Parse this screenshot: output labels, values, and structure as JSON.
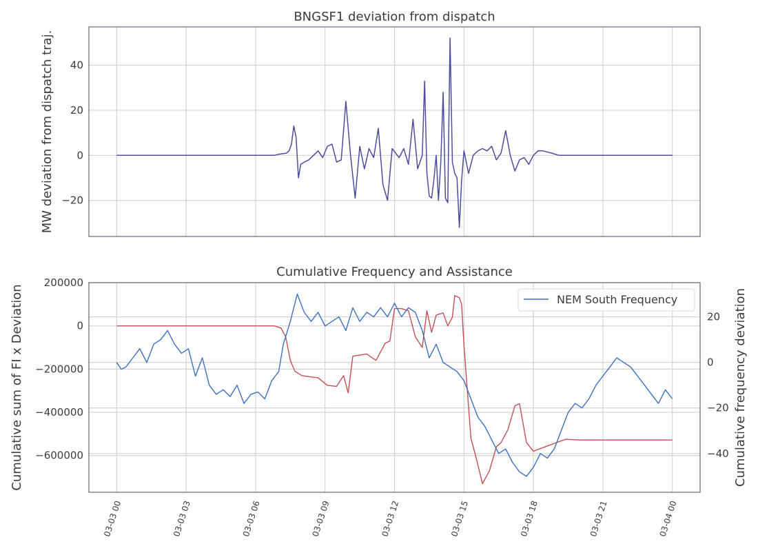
{
  "chart_data": [
    {
      "type": "line",
      "title": "BNGSF1 deviation from dispatch",
      "xlabel": "",
      "ylabel": "MW deviation from dispatch traj.",
      "xlim": [
        "2024-03-02T22:48",
        "2024-03-04T01:12"
      ],
      "ylim": [
        -36,
        57
      ],
      "yticks": [
        -20,
        0,
        20,
        40
      ],
      "grid": true,
      "series": [
        {
          "color": "#4c4c9c",
          "x": [
            "2024-03-03T00:00",
            "2024-03-03T06:48",
            "2024-03-03T07:00",
            "2024-03-03T07:20",
            "2024-03-03T07:27",
            "2024-03-03T07:33",
            "2024-03-03T07:39",
            "2024-03-03T07:45",
            "2024-03-03T07:51",
            "2024-03-03T07:57",
            "2024-03-03T08:06",
            "2024-03-03T08:18",
            "2024-03-03T08:30",
            "2024-03-03T08:42",
            "2024-03-03T08:54",
            "2024-03-03T09:06",
            "2024-03-03T09:18",
            "2024-03-03T09:30",
            "2024-03-03T09:42",
            "2024-03-03T09:54",
            "2024-03-03T10:06",
            "2024-03-03T10:18",
            "2024-03-03T10:30",
            "2024-03-03T10:42",
            "2024-03-03T10:54",
            "2024-03-03T11:06",
            "2024-03-03T11:18",
            "2024-03-03T11:30",
            "2024-03-03T11:42",
            "2024-03-03T11:54",
            "2024-03-03T12:12",
            "2024-03-03T12:24",
            "2024-03-03T12:36",
            "2024-03-03T12:48",
            "2024-03-03T13:00",
            "2024-03-03T13:12",
            "2024-03-03T13:18",
            "2024-03-03T13:24",
            "2024-03-03T13:30",
            "2024-03-03T13:36",
            "2024-03-03T13:42",
            "2024-03-03T13:48",
            "2024-03-03T13:54",
            "2024-03-03T14:00",
            "2024-03-03T14:06",
            "2024-03-03T14:12",
            "2024-03-03T14:18",
            "2024-03-03T14:24",
            "2024-03-03T14:30",
            "2024-03-03T14:36",
            "2024-03-03T14:42",
            "2024-03-03T14:48",
            "2024-03-03T14:54",
            "2024-03-03T15:00",
            "2024-03-03T15:12",
            "2024-03-03T15:24",
            "2024-03-03T15:36",
            "2024-03-03T15:48",
            "2024-03-03T16:00",
            "2024-03-03T16:12",
            "2024-03-03T16:24",
            "2024-03-03T16:36",
            "2024-03-03T16:48",
            "2024-03-03T17:00",
            "2024-03-03T17:12",
            "2024-03-03T17:24",
            "2024-03-03T17:36",
            "2024-03-03T17:48",
            "2024-03-03T18:00",
            "2024-03-03T18:12",
            "2024-03-03T18:24",
            "2024-03-03T18:48",
            "2024-03-03T19:06",
            "2024-03-03T19:24",
            "2024-03-03T20:00",
            "2024-03-04T00:00"
          ],
          "y": [
            0,
            0,
            0.5,
            1,
            2,
            5,
            13,
            8,
            -10,
            -4,
            -3,
            -2,
            0,
            2,
            -1,
            4,
            5,
            -3,
            -2,
            24,
            0,
            -19,
            4,
            -6,
            3,
            -1,
            12,
            -13,
            -20,
            3,
            -1,
            3,
            -4,
            16,
            -6,
            0,
            33,
            -8,
            -18,
            -19,
            -11,
            0,
            -20,
            -3,
            28,
            -19,
            -21,
            52,
            -3,
            -8,
            -10,
            -32,
            -11,
            2,
            -8,
            0,
            2,
            3,
            2,
            4,
            -2,
            1,
            11,
            0,
            -7,
            -2,
            -1,
            -4,
            0,
            2,
            2,
            1,
            0,
            0,
            0,
            0
          ]
        }
      ]
    },
    {
      "type": "line",
      "title": "Cumulative Frequency and Assistance",
      "xlabel": "",
      "ylabel": "Cumulative sum of FI x Deviation",
      "y2label": "Cumulative frequency deviation",
      "xlim": [
        "2024-03-02T22:48",
        "2024-03-04T01:12"
      ],
      "ylim": [
        -770000,
        200000
      ],
      "yticks": [
        -600000,
        -400000,
        -200000,
        0,
        200000
      ],
      "y2lim": [
        -57,
        35
      ],
      "y2ticks": [
        -40,
        -20,
        0,
        20
      ],
      "xticks": [
        "03-03 00",
        "03-03 03",
        "03-03 06",
        "03-03 09",
        "03-03 12",
        "03-03 15",
        "03-03 18",
        "03-03 21",
        "03-04 00"
      ],
      "legend": {
        "position": "top-right",
        "entries": [
          "NEM South Frequency"
        ]
      },
      "grid": true,
      "series": [
        {
          "axis": "left",
          "color": "#c44e52",
          "x": [
            "2024-03-03T00:00",
            "2024-03-03T06:48",
            "2024-03-03T07:06",
            "2024-03-03T07:18",
            "2024-03-03T07:30",
            "2024-03-03T07:42",
            "2024-03-03T08:00",
            "2024-03-03T08:18",
            "2024-03-03T08:42",
            "2024-03-03T09:06",
            "2024-03-03T09:30",
            "2024-03-03T09:48",
            "2024-03-03T10:00",
            "2024-03-03T10:12",
            "2024-03-03T10:48",
            "2024-03-03T11:12",
            "2024-03-03T11:36",
            "2024-03-03T11:48",
            "2024-03-03T12:00",
            "2024-03-03T12:18",
            "2024-03-03T12:36",
            "2024-03-03T12:54",
            "2024-03-03T13:12",
            "2024-03-03T13:24",
            "2024-03-03T13:36",
            "2024-03-03T13:48",
            "2024-03-03T14:06",
            "2024-03-03T14:18",
            "2024-03-03T14:30",
            "2024-03-03T14:36",
            "2024-03-03T14:48",
            "2024-03-03T14:54",
            "2024-03-03T15:00",
            "2024-03-03T15:18",
            "2024-03-03T15:30",
            "2024-03-03T15:48",
            "2024-03-03T16:06",
            "2024-03-03T16:24",
            "2024-03-03T16:36",
            "2024-03-03T16:54",
            "2024-03-03T17:12",
            "2024-03-03T17:24",
            "2024-03-03T17:42",
            "2024-03-03T18:00",
            "2024-03-03T18:30",
            "2024-03-03T19:00",
            "2024-03-03T19:24",
            "2024-03-03T20:00",
            "2024-03-04T00:00"
          ],
          "y": [
            0,
            0,
            -10000,
            -50000,
            -160000,
            -210000,
            -230000,
            -235000,
            -240000,
            -275000,
            -280000,
            -230000,
            -310000,
            -140000,
            -130000,
            -160000,
            -80000,
            -70000,
            80000,
            80000,
            70000,
            -50000,
            -100000,
            70000,
            -30000,
            50000,
            60000,
            0,
            40000,
            140000,
            130000,
            100000,
            -90000,
            -520000,
            -600000,
            -730000,
            -670000,
            -560000,
            -540000,
            -480000,
            -370000,
            -360000,
            -540000,
            -580000,
            -560000,
            -540000,
            -525000,
            -528000,
            -528000
          ]
        },
        {
          "axis": "right",
          "color": "#3b6fc2",
          "name": "NEM South Frequency",
          "x": [
            "2024-03-03T00:00",
            "2024-03-03T00:12",
            "2024-03-03T00:24",
            "2024-03-03T00:42",
            "2024-03-03T01:00",
            "2024-03-03T01:18",
            "2024-03-03T01:36",
            "2024-03-03T01:54",
            "2024-03-03T02:12",
            "2024-03-03T02:30",
            "2024-03-03T02:48",
            "2024-03-03T03:06",
            "2024-03-03T03:24",
            "2024-03-03T03:42",
            "2024-03-03T04:00",
            "2024-03-03T04:18",
            "2024-03-03T04:36",
            "2024-03-03T04:54",
            "2024-03-03T05:12",
            "2024-03-03T05:30",
            "2024-03-03T05:48",
            "2024-03-03T06:06",
            "2024-03-03T06:24",
            "2024-03-03T06:42",
            "2024-03-03T07:00",
            "2024-03-03T07:12",
            "2024-03-03T07:30",
            "2024-03-03T07:48",
            "2024-03-03T08:06",
            "2024-03-03T08:24",
            "2024-03-03T08:42",
            "2024-03-03T09:00",
            "2024-03-03T09:18",
            "2024-03-03T09:36",
            "2024-03-03T09:54",
            "2024-03-03T10:12",
            "2024-03-03T10:30",
            "2024-03-03T10:48",
            "2024-03-03T11:06",
            "2024-03-03T11:24",
            "2024-03-03T11:42",
            "2024-03-03T12:00",
            "2024-03-03T12:18",
            "2024-03-03T12:36",
            "2024-03-03T12:54",
            "2024-03-03T13:12",
            "2024-03-03T13:30",
            "2024-03-03T13:48",
            "2024-03-03T14:06",
            "2024-03-03T14:24",
            "2024-03-03T14:42",
            "2024-03-03T15:00",
            "2024-03-03T15:18",
            "2024-03-03T15:36",
            "2024-03-03T15:54",
            "2024-03-03T16:12",
            "2024-03-03T16:30",
            "2024-03-03T16:48",
            "2024-03-03T17:06",
            "2024-03-03T17:24",
            "2024-03-03T17:42",
            "2024-03-03T18:00",
            "2024-03-03T18:18",
            "2024-03-03T18:36",
            "2024-03-03T18:54",
            "2024-03-03T19:12",
            "2024-03-03T19:30",
            "2024-03-03T19:48",
            "2024-03-03T20:06",
            "2024-03-03T20:24",
            "2024-03-03T20:42",
            "2024-03-03T21:00",
            "2024-03-03T21:18",
            "2024-03-03T21:36",
            "2024-03-03T21:54",
            "2024-03-03T22:12",
            "2024-03-03T22:30",
            "2024-03-03T22:48",
            "2024-03-03T23:06",
            "2024-03-03T23:24",
            "2024-03-03T23:42",
            "2024-03-04T00:00"
          ],
          "y": [
            0,
            -3,
            -2,
            2,
            6,
            0,
            8,
            10,
            14,
            8,
            4,
            6,
            -6,
            2,
            -10,
            -14,
            -12,
            -15,
            -10,
            -18,
            -14,
            -13,
            -16,
            -8,
            -4,
            8,
            18,
            30,
            22,
            18,
            22,
            16,
            18,
            20,
            14,
            24,
            18,
            22,
            20,
            24,
            20,
            26,
            20,
            24,
            22,
            14,
            2,
            8,
            0,
            -2,
            -4,
            -8,
            -16,
            -24,
            -28,
            -34,
            -40,
            -38,
            -44,
            -48,
            -50,
            -46,
            -40,
            -42,
            -38,
            -30,
            -22,
            -18,
            -20,
            -16,
            -10,
            -6,
            -2,
            2,
            0,
            -2,
            -6,
            -10,
            -14,
            -18,
            -12,
            -16
          ]
        }
      ]
    }
  ]
}
